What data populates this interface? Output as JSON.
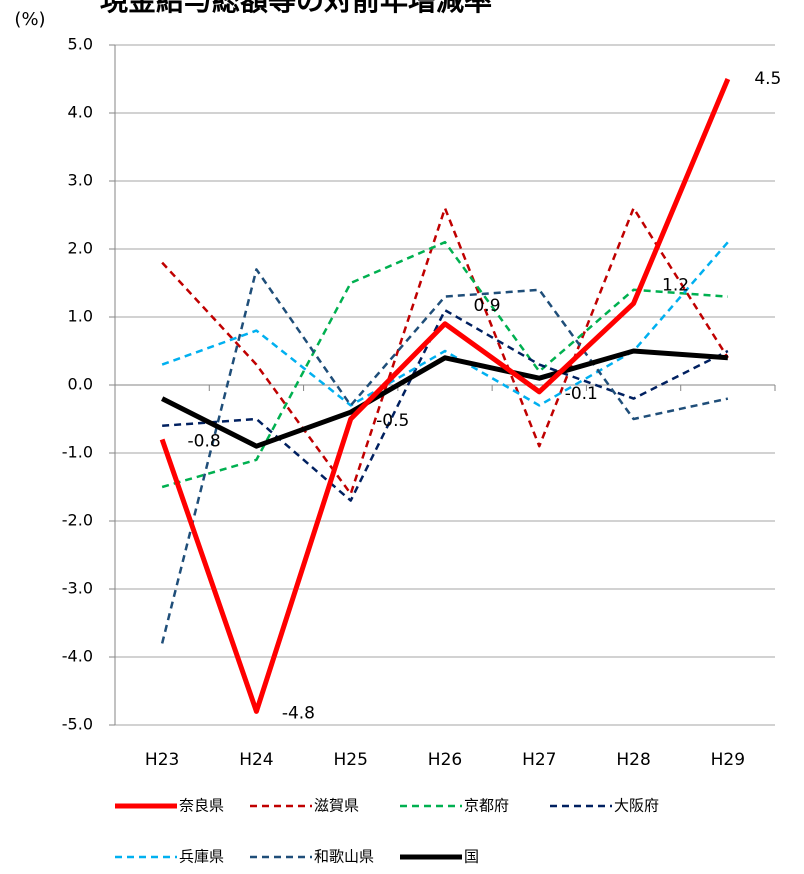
{
  "chart_data": {
    "type": "line",
    "title": "現金給与総額等の対前年増減率",
    "y_label": "(%)",
    "categories": [
      "H23",
      "H24",
      "H25",
      "H26",
      "H27",
      "H28",
      "H29"
    ],
    "ylim": [
      -5,
      5
    ],
    "yticks": [
      {
        "value": 5,
        "label": "5.0"
      },
      {
        "value": 4,
        "label": "4.0"
      },
      {
        "value": 3,
        "label": "3.0"
      },
      {
        "value": 2,
        "label": "2.0"
      },
      {
        "value": 1,
        "label": "1.0"
      },
      {
        "value": 0,
        "label": "0.0"
      },
      {
        "value": -1,
        "label": "-1.0"
      },
      {
        "value": -2,
        "label": "-2.0"
      },
      {
        "value": -3,
        "label": "-3.0"
      },
      {
        "value": -4,
        "label": "-4.0"
      },
      {
        "value": -5,
        "label": "-5.0"
      }
    ],
    "grid": true,
    "series": [
      {
        "name": "奈良県",
        "color": "#ff0000",
        "dashed": false,
        "labeled": true,
        "values": [
          -0.8,
          -4.8,
          -0.5,
          0.9,
          -0.1,
          1.2,
          4.5
        ]
      },
      {
        "name": "滋賀県",
        "color": "#c00000",
        "dashed": true,
        "values": [
          1.8,
          0.3,
          -1.6,
          2.6,
          -0.9,
          2.6,
          0.4
        ]
      },
      {
        "name": "京都府",
        "color": "#00b050",
        "dashed": true,
        "values": [
          -1.5,
          -1.1,
          1.5,
          2.1,
          0.2,
          1.4,
          1.3
        ]
      },
      {
        "name": "大阪府",
        "color": "#002060",
        "dashed": true,
        "values": [
          -0.6,
          -0.5,
          -1.7,
          1.1,
          0.3,
          -0.2,
          0.5
        ]
      },
      {
        "name": "兵庫県",
        "color": "#00b0f0",
        "dashed": true,
        "values": [
          0.3,
          0.8,
          -0.3,
          0.5,
          -0.3,
          0.5,
          2.1
        ]
      },
      {
        "name": "和歌山県",
        "color": "#1f4e79",
        "dashed": true,
        "values": [
          -3.8,
          1.7,
          -0.3,
          1.3,
          1.4,
          -0.5,
          -0.2
        ]
      },
      {
        "name": "国",
        "color": "#000000",
        "dashed": false,
        "values": [
          -0.2,
          -0.9,
          -0.4,
          0.4,
          0.1,
          0.5,
          0.4
        ]
      }
    ]
  }
}
